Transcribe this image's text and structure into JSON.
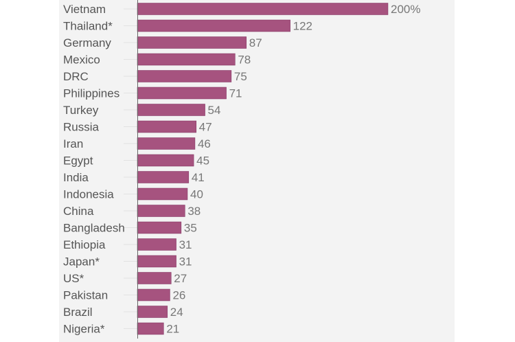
{
  "chart_data": {
    "type": "bar",
    "orientation": "horizontal",
    "categories": [
      "Vietnam",
      "Thailand*",
      "Germany",
      "Mexico",
      "DRC",
      "Philippines",
      "Turkey",
      "Russia",
      "Iran",
      "Egypt",
      "India",
      "Indonesia",
      "China",
      "Bangladesh",
      "Ethiopia",
      "Japan*",
      "US*",
      "Pakistan",
      "Brazil",
      "Nigeria*"
    ],
    "values": [
      200,
      122,
      87,
      78,
      75,
      71,
      54,
      47,
      46,
      45,
      41,
      40,
      38,
      35,
      31,
      31,
      27,
      26,
      24,
      21
    ],
    "value_labels": [
      "200%",
      "122",
      "87",
      "78",
      "75",
      "71",
      "54",
      "47",
      "46",
      "45",
      "41",
      "40",
      "38",
      "35",
      "31",
      "31",
      "27",
      "26",
      "24",
      "21"
    ],
    "xlim": [
      0,
      200
    ],
    "bar_color": "#a6537f",
    "background_color": "#f3f3f3",
    "grid": false,
    "legend": "none"
  }
}
